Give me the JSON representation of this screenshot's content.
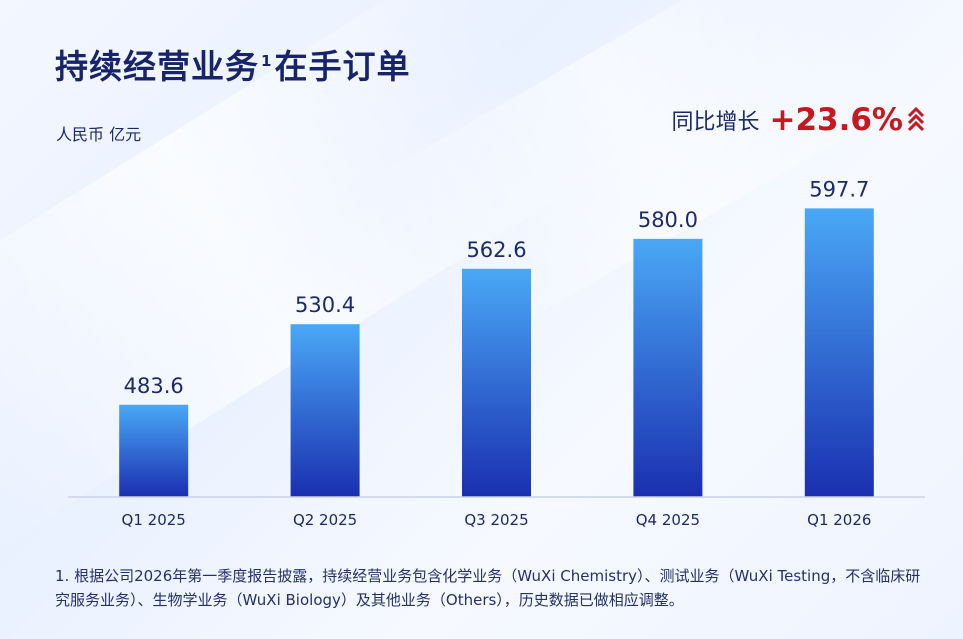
{
  "header": {
    "title_main": "持续经营业务",
    "title_sup": "1",
    "title_tail": "在手订单",
    "unit": "人民币 亿元"
  },
  "yoy": {
    "label": "同比增长",
    "value": "+23.6%",
    "icon": "triple-chevron-up-icon",
    "color": "#c8171e"
  },
  "chart_data": {
    "type": "bar",
    "categories": [
      "Q1 2025",
      "Q2 2025",
      "Q3 2025",
      "Q4 2025",
      "Q1 2026"
    ],
    "values": [
      483.6,
      530.4,
      562.6,
      580.0,
      597.7
    ],
    "value_labels": [
      "483.6",
      "530.4",
      "562.6",
      "580.0",
      "597.7"
    ],
    "ylim": [
      430,
      620
    ],
    "grid": false,
    "bar_color_top": "#4aa8f6",
    "bar_color_bottom": "#1a2fb0"
  },
  "footnote": {
    "text": "1. 根据公司2026年第一季度报告披露，持续经营业务包含化学业务（WuXi Chemistry）、测试业务（WuXi Testing，不含临床研究服务业务）、生物学业务（WuXi Biology）及其他业务（Others），历史数据已做相应调整。"
  }
}
